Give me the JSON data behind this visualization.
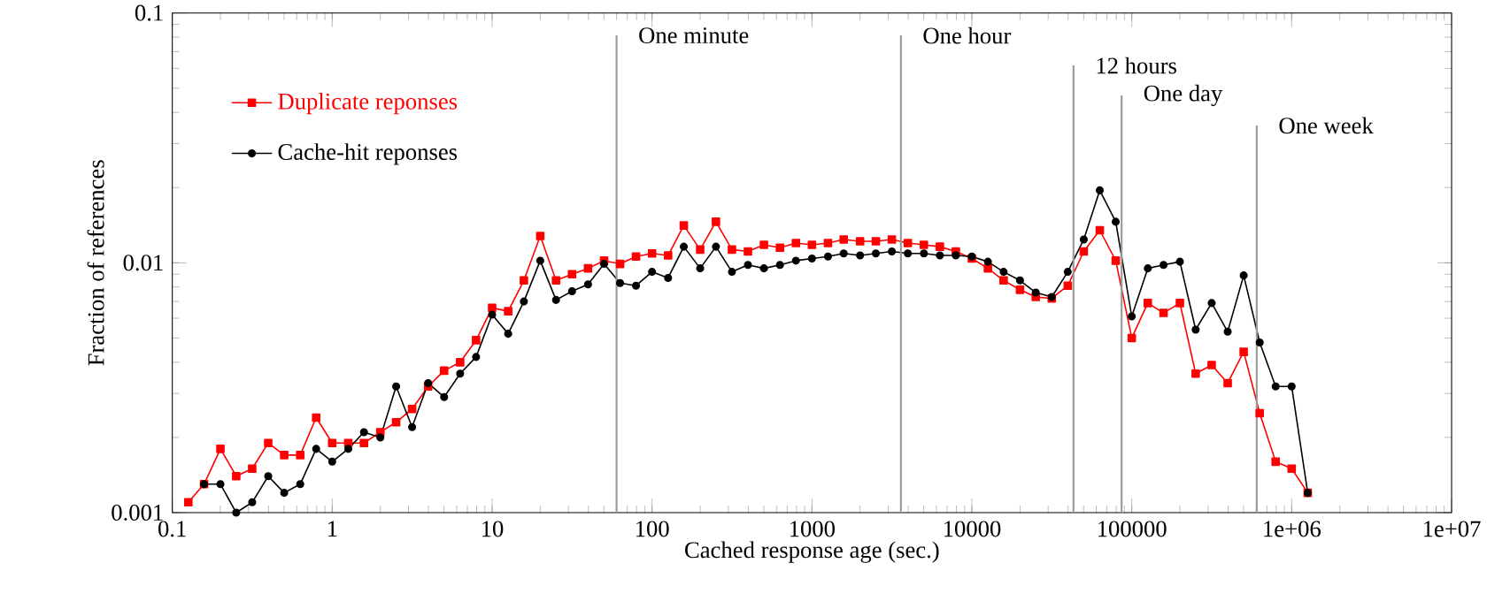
{
  "chart_data": {
    "type": "line",
    "xlabel": "Cached response age (sec.)",
    "ylabel": "Fraction of references",
    "log": "xy",
    "xlim": [
      0.1,
      10000000
    ],
    "ylim": [
      0.001,
      0.1
    ],
    "xticks": [
      0.1,
      1,
      10,
      100,
      1000,
      10000,
      100000,
      {
        "value": 1000000,
        "label": "1e+06"
      },
      {
        "value": 10000000,
        "label": "1e+07"
      }
    ],
    "yticks": [
      0.001,
      0.01,
      0.1
    ],
    "legend": "top left",
    "line_style": "solid",
    "x": [
      0.126,
      0.158,
      0.2,
      0.251,
      0.316,
      0.398,
      0.501,
      0.631,
      0.794,
      1,
      1.26,
      1.58,
      2,
      2.51,
      3.16,
      3.98,
      5.01,
      6.31,
      7.94,
      10,
      12.6,
      15.8,
      20,
      25.1,
      31.6,
      39.8,
      50.1,
      63.1,
      79.4,
      100,
      126,
      158,
      200,
      251,
      316,
      398,
      501,
      631,
      794,
      1000,
      1260,
      1580,
      2000,
      2510,
      3160,
      3980,
      5010,
      6310,
      7940,
      10000,
      12600,
      15800,
      20000,
      25100,
      31600,
      39800,
      50100,
      63100,
      79400,
      100000,
      126000,
      158000,
      200000,
      251000,
      316000,
      398000,
      501000,
      631000,
      794000,
      1000000,
      1260000
    ],
    "series": [
      {
        "name": "Duplicate reponses",
        "color": "#ff0000",
        "marker": "square",
        "values": [
          0.0011,
          0.0013,
          0.0018,
          0.0014,
          0.0015,
          0.0019,
          0.0017,
          0.0017,
          0.0024,
          0.0019,
          0.0019,
          0.0019,
          0.0021,
          0.0023,
          0.0026,
          0.0032,
          0.0037,
          0.004,
          0.0049,
          0.0066,
          0.0064,
          0.0085,
          0.0128,
          0.0085,
          0.009,
          0.0095,
          0.0102,
          0.0099,
          0.0106,
          0.0109,
          0.0107,
          0.0141,
          0.0113,
          0.0146,
          0.0113,
          0.0111,
          0.0118,
          0.0115,
          0.012,
          0.0118,
          0.012,
          0.0124,
          0.0122,
          0.0122,
          0.0124,
          0.012,
          0.0118,
          0.0116,
          0.0111,
          0.0104,
          0.0095,
          0.0085,
          0.0078,
          0.0073,
          0.0072,
          0.0081,
          0.0111,
          0.0135,
          0.0102,
          0.005,
          0.0069,
          0.0063,
          0.0069,
          0.0036,
          0.0039,
          0.0033,
          0.0044,
          0.0025,
          0.0016,
          0.0015,
          0.0012
        ]
      },
      {
        "name": "Cache-hit reponses",
        "color": "#000000",
        "marker": "circle",
        "values": [
          null,
          0.0013,
          0.0013,
          0.001,
          0.0011,
          0.0014,
          0.0012,
          0.0013,
          0.0018,
          0.0016,
          0.0018,
          0.0021,
          0.002,
          0.0032,
          0.0022,
          0.0033,
          0.0029,
          0.0036,
          0.0042,
          0.0062,
          0.0052,
          0.007,
          0.0102,
          0.0071,
          0.0077,
          0.0082,
          0.0099,
          0.0083,
          0.0081,
          0.0092,
          0.0087,
          0.0116,
          0.0095,
          0.0116,
          0.0092,
          0.0098,
          0.0095,
          0.0098,
          0.0102,
          0.0104,
          0.0106,
          0.0109,
          0.0107,
          0.0109,
          0.0111,
          0.0109,
          0.0109,
          0.0107,
          0.0107,
          0.0106,
          0.0101,
          0.0092,
          0.0085,
          0.0076,
          0.0073,
          0.0092,
          0.0124,
          0.0195,
          0.0146,
          0.0061,
          0.0095,
          0.0098,
          0.0101,
          0.0054,
          0.0069,
          0.0053,
          0.0089,
          0.0048,
          0.0032,
          0.0032,
          0.0012
        ]
      }
    ],
    "ref_lines": [
      {
        "axis": "x",
        "value": 60,
        "label": "One minute",
        "color": "#999999"
      },
      {
        "axis": "x",
        "value": 3600,
        "label": "One hour",
        "color": "#999999"
      },
      {
        "axis": "x",
        "value": 43200,
        "label": "12 hours",
        "color": "#999999"
      },
      {
        "axis": "x",
        "value": 86400,
        "label": "One day",
        "color": "#999999"
      },
      {
        "axis": "x",
        "value": 604800,
        "label": "One week",
        "color": "#999999"
      }
    ]
  }
}
